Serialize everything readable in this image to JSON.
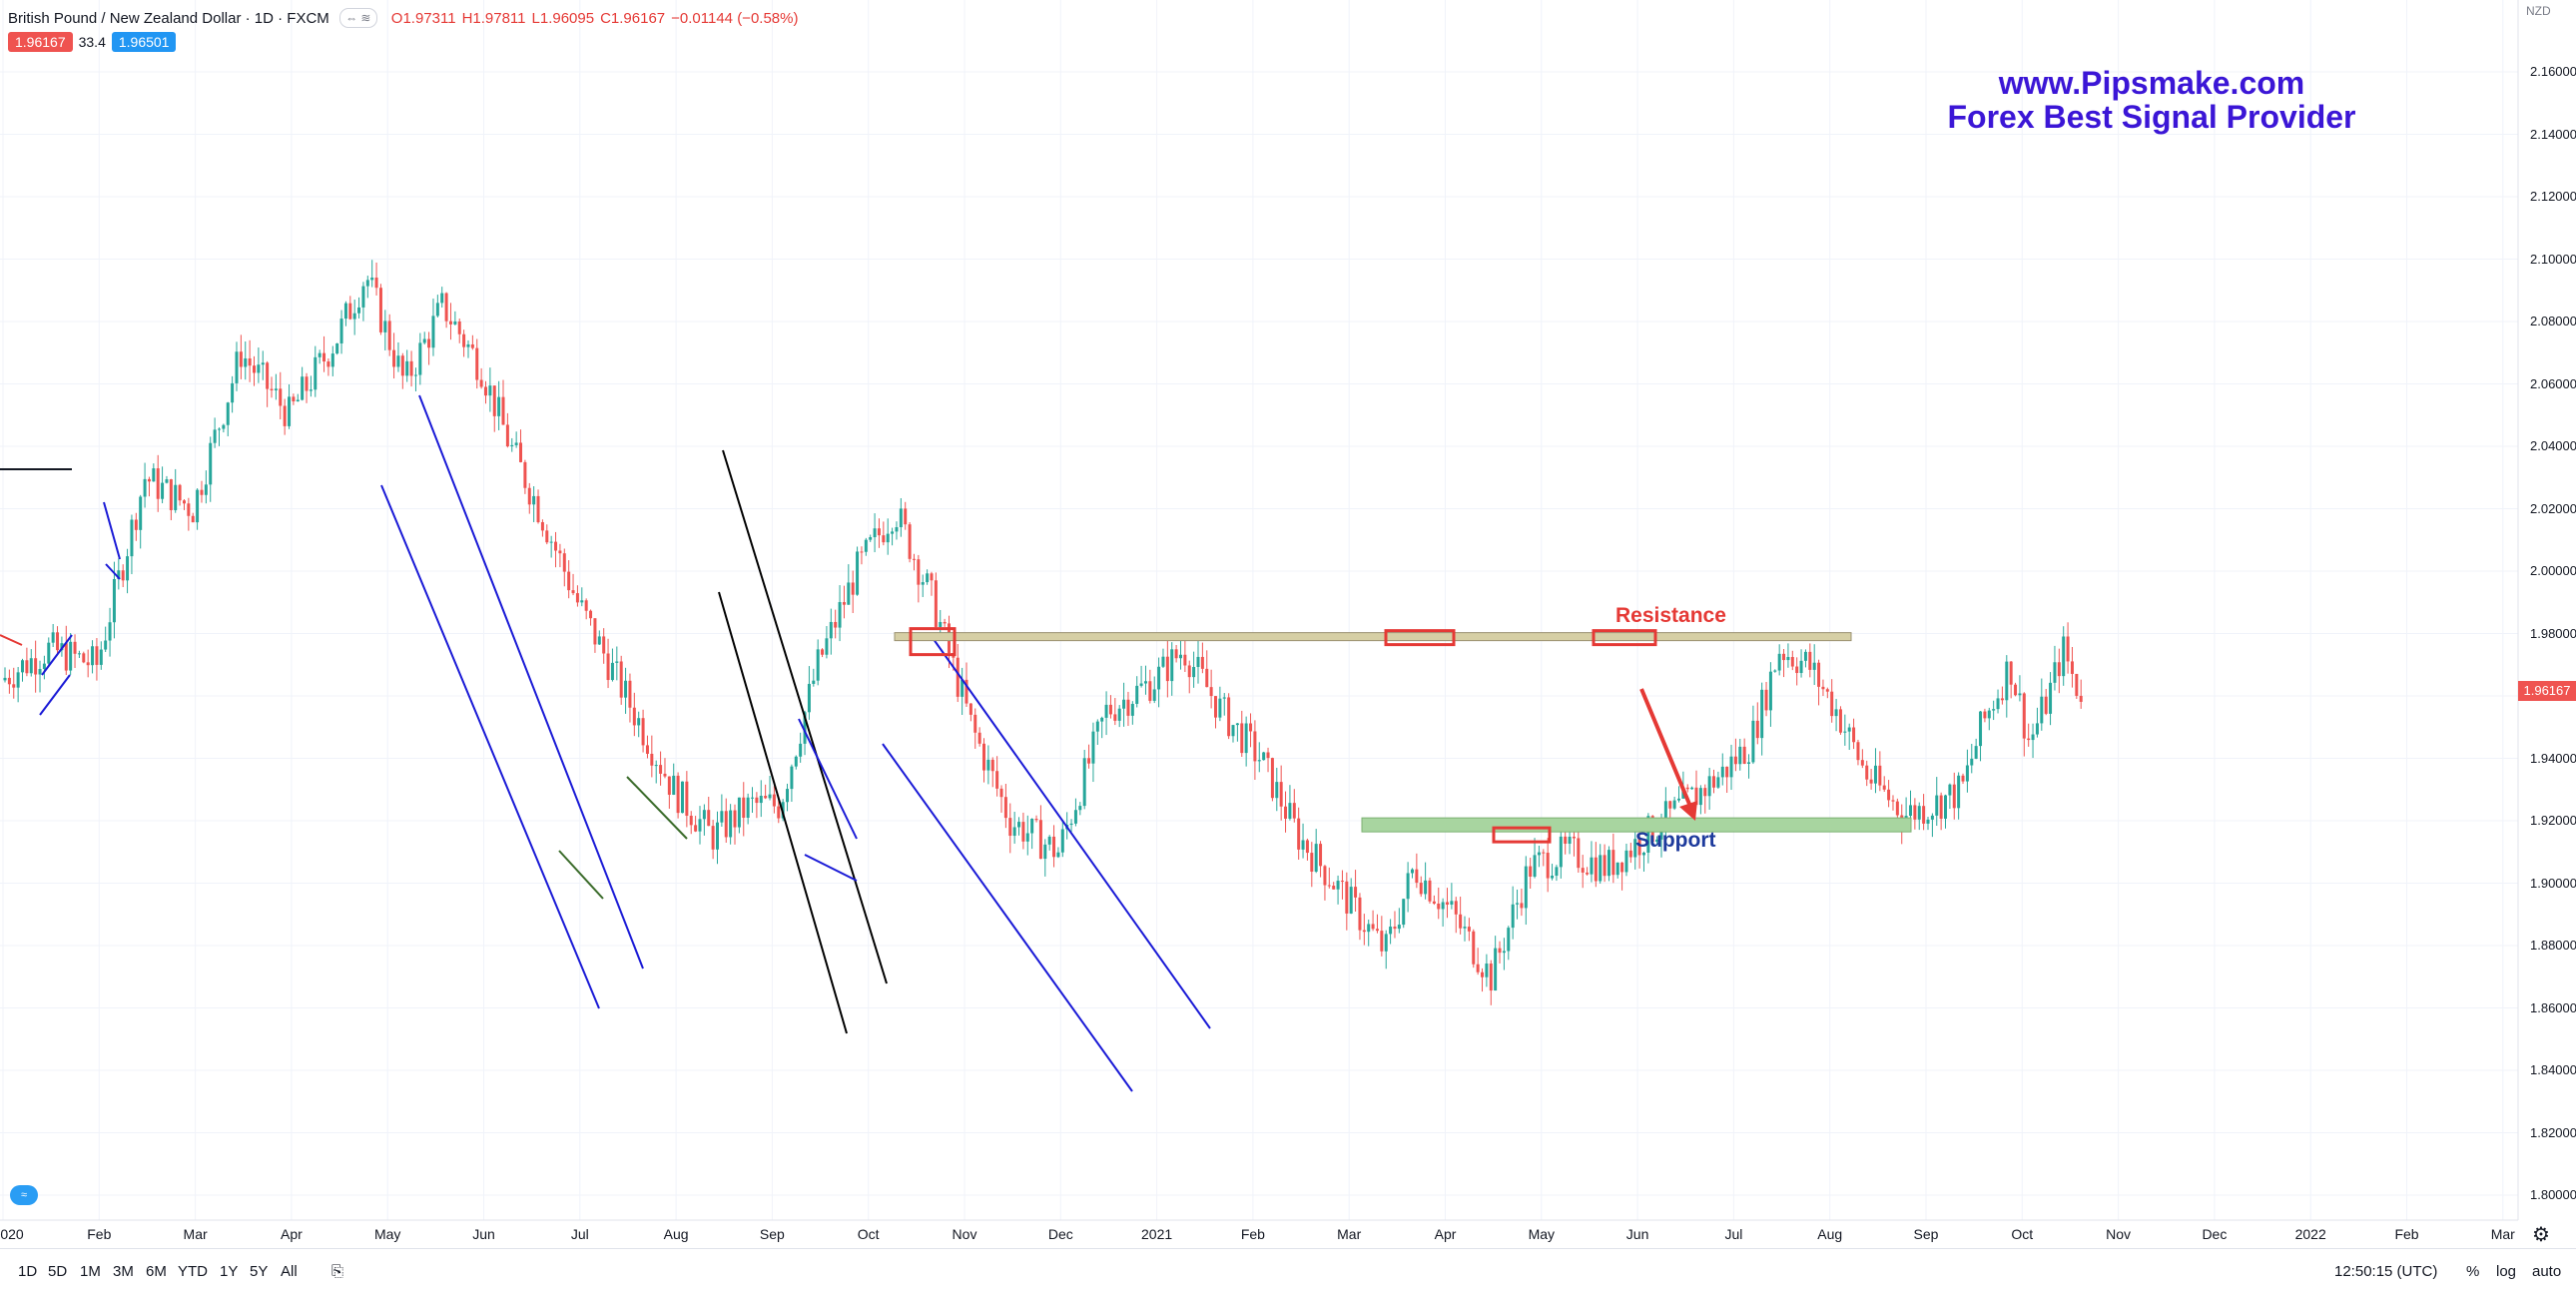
{
  "header": {
    "symbol": "British Pound / New Zealand Dollar · 1D · FXCM",
    "open": "O1.97311",
    "high": "H1.97811",
    "low": "L1.96095",
    "close": "C1.96167",
    "change": "−0.01144 (−0.58%)",
    "badge_sell": "1.96167",
    "badge_vol": "33.4",
    "badge_buy": "1.96501"
  },
  "watermark": {
    "line1": "www.Pipsmake.com",
    "line2": "Forex Best Signal Provider"
  },
  "chart_data": {
    "type": "candlestick",
    "y_axis": {
      "currency": "NZD",
      "ticks": [
        2.16,
        2.14,
        2.12,
        2.1,
        2.08,
        2.06,
        2.04,
        2.02,
        2.0,
        1.98,
        1.96,
        1.94,
        1.92,
        1.9,
        1.88,
        1.86,
        1.84,
        1.82,
        1.8
      ],
      "tick_labels": [
        "2.16000",
        "2.14000",
        "2.12000",
        "2.10000",
        "2.08000",
        "2.06000",
        "2.04000",
        "2.02000",
        "2.00000",
        "1.98000",
        "1.96000",
        "1.94000",
        "1.92000",
        "1.90000",
        "1.88000",
        "1.86000",
        "1.84000",
        "1.82000",
        "1.80000"
      ],
      "current_price": "1.96167"
    },
    "x_axis": {
      "labels": [
        "020",
        "Feb",
        "Mar",
        "Apr",
        "May",
        "Jun",
        "Jul",
        "Aug",
        "Sep",
        "Oct",
        "Nov",
        "Dec",
        "2021",
        "Feb",
        "Mar",
        "Apr",
        "May",
        "Jun",
        "Jul",
        "Aug",
        "Sep",
        "Oct",
        "Nov",
        "Dec",
        "2022",
        "Feb",
        "Mar"
      ]
    },
    "price_path": [
      [
        0,
        1.965
      ],
      [
        0.5,
        1.975
      ],
      [
        1,
        1.97
      ],
      [
        1.5,
        2.03
      ],
      [
        2,
        2.02
      ],
      [
        2.5,
        2.07
      ],
      [
        3,
        2.05
      ],
      [
        3.5,
        2.075
      ],
      [
        3.8,
        2.095
      ],
      [
        4.2,
        2.06
      ],
      [
        4.6,
        2.085
      ],
      [
        5,
        2.065
      ],
      [
        5.3,
        2.04
      ],
      [
        5.6,
        2.02
      ],
      [
        6,
        1.99
      ],
      [
        6.5,
        1.96
      ],
      [
        7,
        1.93
      ],
      [
        7.4,
        1.915
      ],
      [
        7.8,
        1.925
      ],
      [
        8.1,
        1.925
      ],
      [
        8.5,
        1.97
      ],
      [
        8.9,
        2.0
      ],
      [
        9.3,
        2.02
      ],
      [
        9.7,
        1.99
      ],
      [
        10.1,
        1.95
      ],
      [
        10.5,
        1.92
      ],
      [
        11,
        1.91
      ],
      [
        11.5,
        1.955
      ],
      [
        12,
        1.965
      ],
      [
        12.3,
        1.975
      ],
      [
        12.7,
        1.955
      ],
      [
        13.1,
        1.94
      ],
      [
        13.5,
        1.915
      ],
      [
        14,
        1.895
      ],
      [
        14.4,
        1.878
      ],
      [
        14.7,
        1.905
      ],
      [
        15.1,
        1.89
      ],
      [
        15.5,
        1.87
      ],
      [
        15.9,
        1.905
      ],
      [
        16.3,
        1.91
      ],
      [
        16.7,
        1.905
      ],
      [
        17.1,
        1.915
      ],
      [
        17.5,
        1.925
      ],
      [
        17.9,
        1.935
      ],
      [
        18.2,
        1.945
      ],
      [
        18.5,
        1.975
      ],
      [
        18.8,
        1.97
      ],
      [
        19.1,
        1.955
      ],
      [
        19.4,
        1.935
      ],
      [
        19.8,
        1.922
      ],
      [
        20.1,
        1.925
      ],
      [
        20.4,
        1.93
      ],
      [
        20.6,
        1.95
      ],
      [
        20.9,
        1.97
      ],
      [
        21.1,
        1.945
      ],
      [
        21.3,
        1.96
      ],
      [
        21.45,
        1.975
      ],
      [
        21.6,
        1.962
      ]
    ],
    "annotations": {
      "resistance_label": "Resistance",
      "support_label": "Support",
      "resistance_level": 1.979,
      "support_level": 1.919
    }
  },
  "bottom": {
    "timeframes": [
      "1D",
      "5D",
      "1M",
      "3M",
      "6M",
      "YTD",
      "1Y",
      "5Y",
      "All"
    ],
    "clock": "12:50:15 (UTC)",
    "opts": [
      "%",
      "log",
      "auto"
    ]
  }
}
